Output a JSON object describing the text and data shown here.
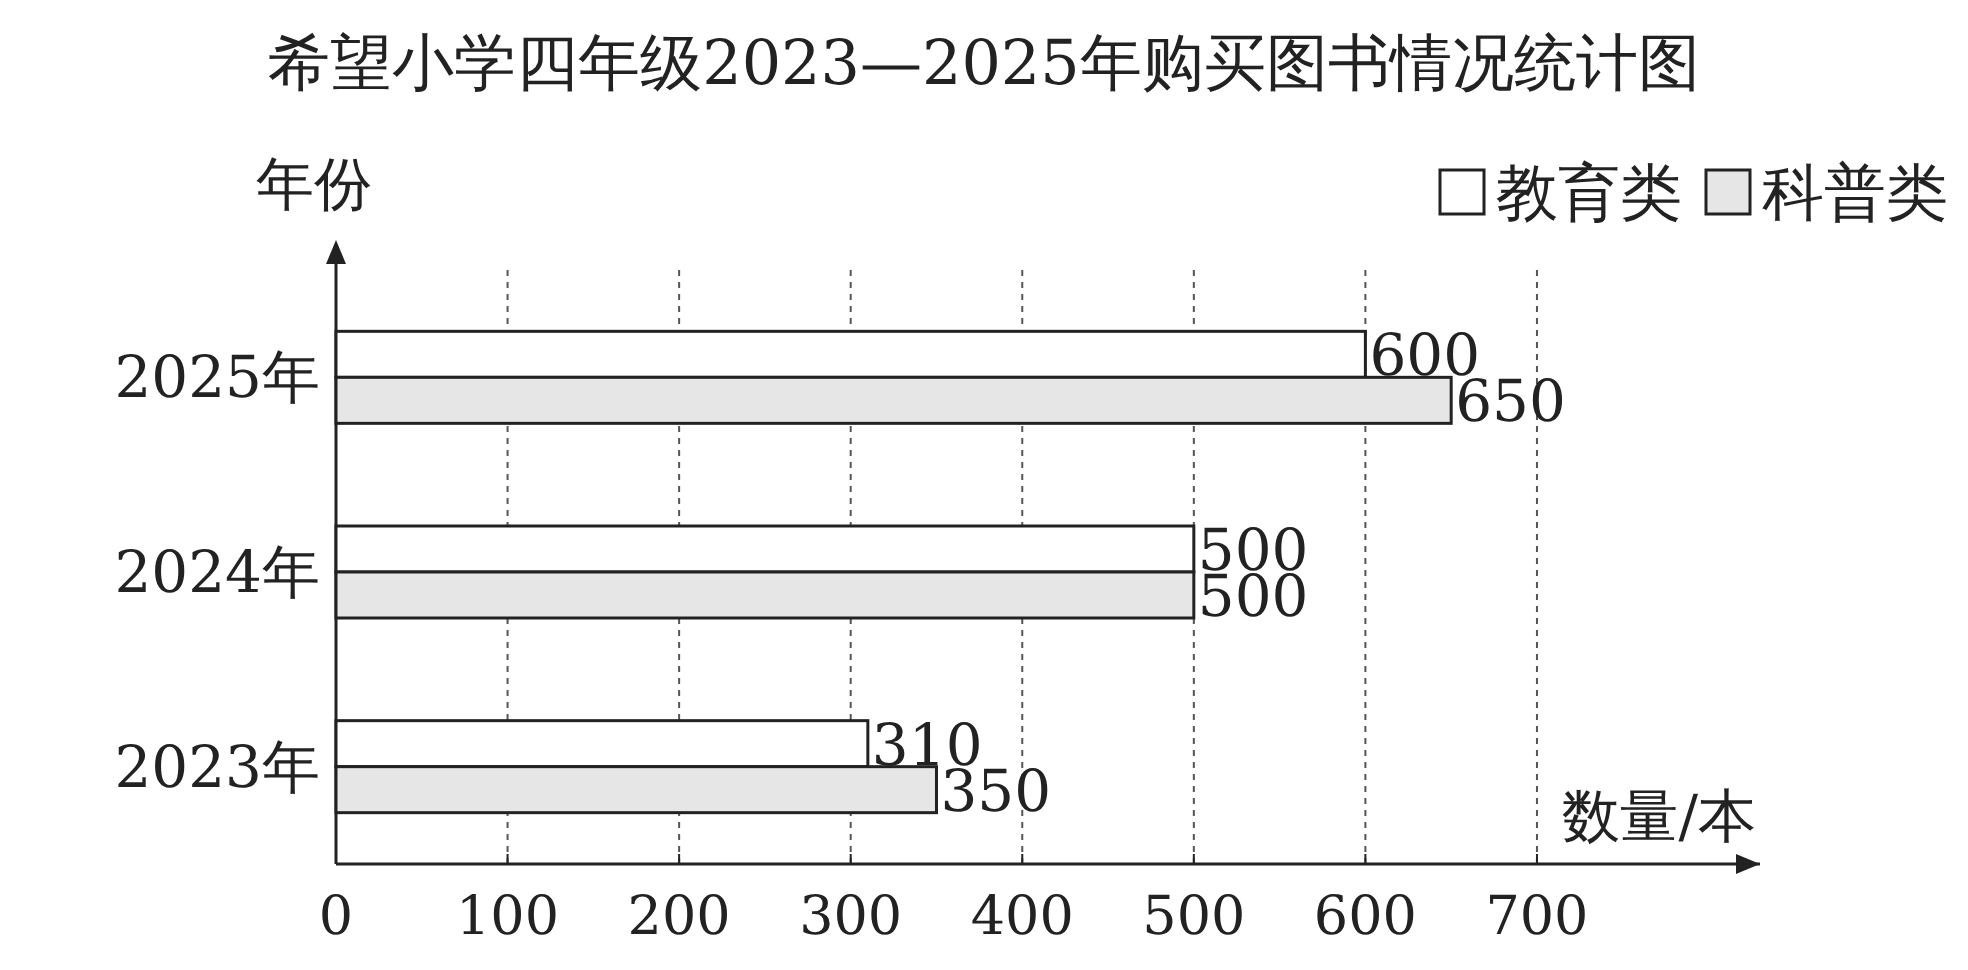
{
  "chart_data": {
    "type": "bar",
    "orientation": "horizontal",
    "title": "希望小学四年级2023—2025年购买图书情况统计图",
    "xlabel": "数量/本",
    "ylabel": "年份",
    "categories": [
      "2025年",
      "2024年",
      "2023年"
    ],
    "series": [
      {
        "name": "教育类",
        "color": "#ffffff",
        "values": [
          600,
          500,
          310
        ]
      },
      {
        "name": "科普类",
        "color": "#e6e6e6",
        "values": [
          650,
          500,
          350
        ]
      }
    ],
    "xlim": [
      0,
      830
    ],
    "xticks": [
      0,
      100,
      200,
      300,
      400,
      500,
      600,
      700
    ],
    "grid": "x",
    "legend": "top right",
    "data_labels": true
  }
}
